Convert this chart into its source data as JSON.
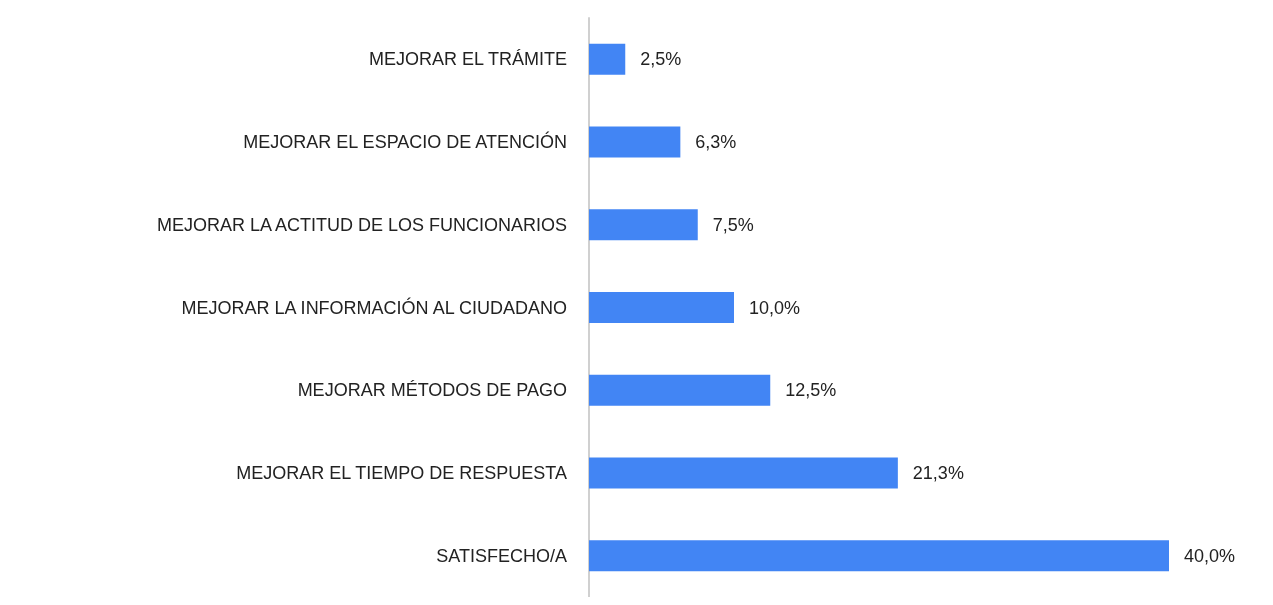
{
  "chart_data": {
    "type": "bar",
    "orientation": "horizontal",
    "categories": [
      "MEJORAR EL TRÁMITE",
      "MEJORAR EL ESPACIO DE ATENCIÓN",
      "MEJORAR LA ACTITUD DE LOS FUNCIONARIOS",
      "MEJORAR LA INFORMACIÓN AL CIUDADANO",
      "MEJORAR MÉTODOS DE PAGO",
      "MEJORAR EL TIEMPO DE RESPUESTA",
      "SATISFECHO/A"
    ],
    "values": [
      2.5,
      6.3,
      7.5,
      10.0,
      12.5,
      21.3,
      40.0
    ],
    "value_labels": [
      "2,5%",
      "6,3%",
      "7,5%",
      "10,0%",
      "12,5%",
      "21,3%",
      "40,0%"
    ],
    "color": "#4285f4"
  }
}
